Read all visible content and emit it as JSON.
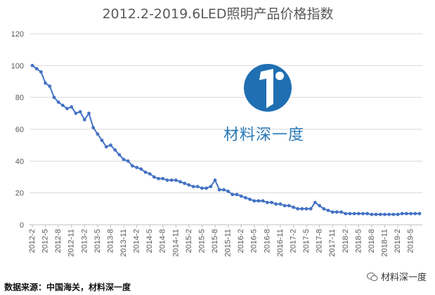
{
  "chart_data": {
    "type": "line",
    "title": "2012.2-2019.6LED照明产品价格指数",
    "xlabel": "",
    "ylabel": "",
    "ylim": [
      0,
      120
    ],
    "yticks": [
      0,
      20,
      40,
      60,
      80,
      100,
      120
    ],
    "grid": true,
    "legend": "none",
    "line_color": "#4472c4",
    "x_tick_labels": [
      "2012-2",
      "2012-5",
      "2012-8",
      "2012-11",
      "2013-2",
      "2013-5",
      "2013-8",
      "2013-11",
      "2014-2",
      "2014-5",
      "2014-8",
      "2014-11",
      "2015-2",
      "2015-5",
      "2015-8",
      "2015-11",
      "2016-2",
      "2016-5",
      "2016-8",
      "2016-11",
      "2017-2",
      "2017-5",
      "2017-8",
      "2017-11",
      "2018-2",
      "2018-5",
      "2018-8",
      "2018-11",
      "2019-2",
      "2019-5"
    ],
    "series": [
      {
        "values": [
          100,
          98,
          96,
          89,
          87,
          80,
          77,
          75,
          73,
          74,
          70,
          71,
          66,
          70,
          61,
          57,
          53,
          49,
          50,
          47,
          44,
          41,
          40,
          37,
          36,
          35,
          33,
          32,
          30,
          29,
          29,
          28,
          28,
          28,
          27,
          26,
          25,
          24,
          24,
          23,
          23,
          24,
          28,
          22,
          22,
          21,
          19,
          19,
          18,
          17,
          16,
          15,
          15,
          15,
          14,
          14,
          13,
          13,
          12,
          12,
          11,
          10,
          10,
          10,
          10,
          14,
          12,
          10,
          9,
          8,
          8,
          8,
          7,
          7,
          7,
          7,
          7,
          7,
          6.5,
          6.5,
          6.5,
          6.5,
          6.5,
          6.5,
          6.5,
          7,
          7,
          7,
          7,
          7
        ]
      }
    ]
  },
  "watermark": {
    "brand_text": "材料深一度",
    "logo_color": "#1f6fb2"
  },
  "footer": {
    "source_text": "数据来源：中国海关，材料深一度",
    "wechat_tag": "材料深一度"
  }
}
